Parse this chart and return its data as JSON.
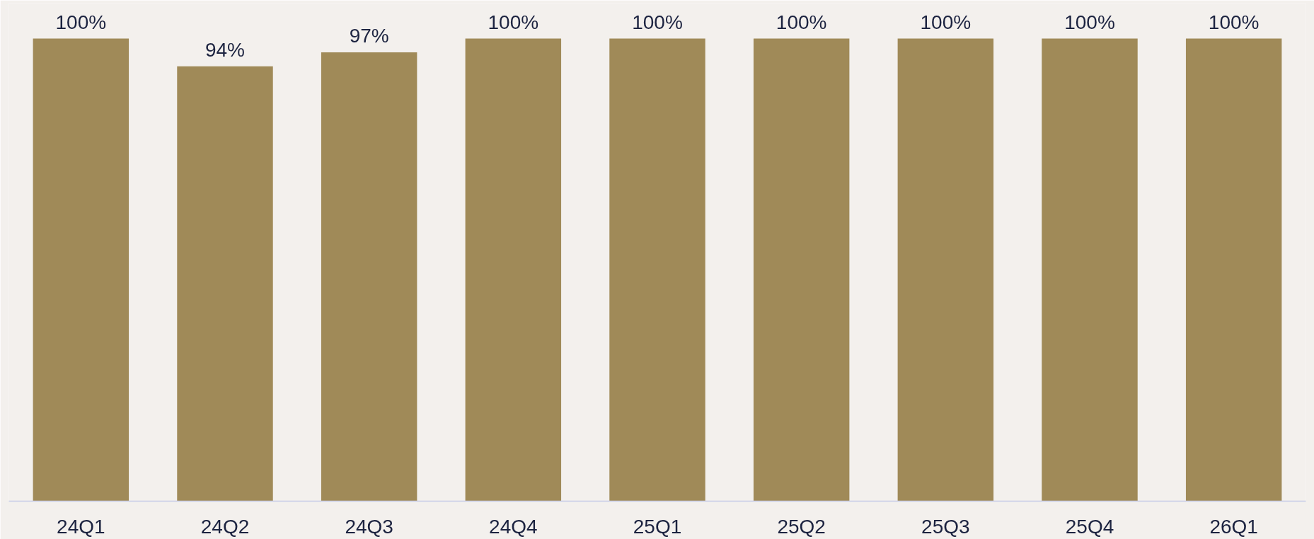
{
  "chart_data": {
    "type": "bar",
    "categories": [
      "24Q1",
      "24Q2",
      "24Q3",
      "24Q4",
      "25Q1",
      "25Q2",
      "25Q3",
      "25Q4",
      "26Q1"
    ],
    "values": [
      100,
      94,
      97,
      100,
      100,
      100,
      100,
      100,
      100
    ],
    "value_labels": [
      "100%",
      "94%",
      "97%",
      "100%",
      "100%",
      "100%",
      "100%",
      "100%",
      "100%"
    ],
    "color": "#a08a58",
    "grid": false
  }
}
